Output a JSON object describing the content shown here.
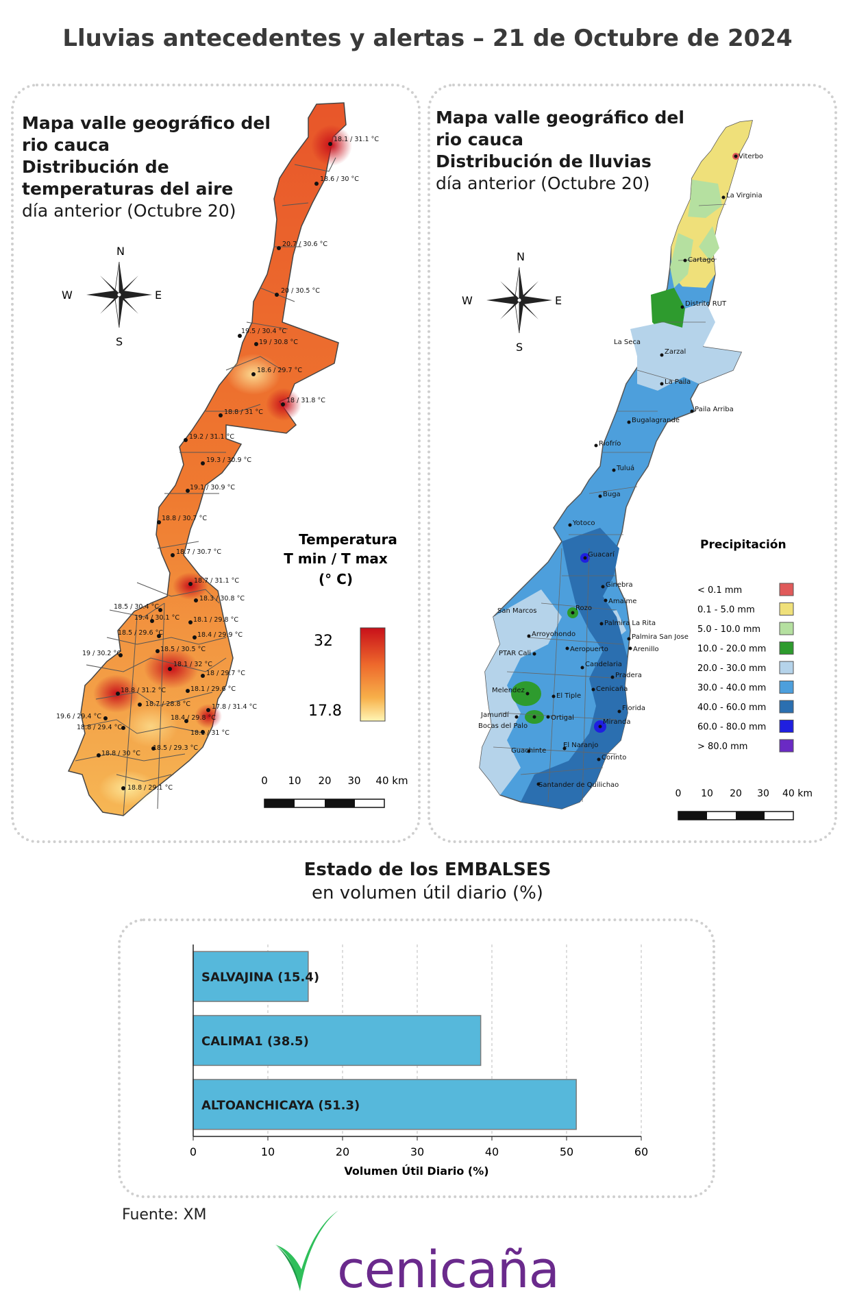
{
  "title": "Lluvias antecedentes y alertas – 21 de Octubre de 2024",
  "temperature_map": {
    "title_line1": "Mapa valle geográfico del",
    "title_line2": "rio cauca",
    "title_line3": "Distribución de",
    "title_line4": "temperaturas del aire",
    "title_line5": "día anterior (Octubre 20)",
    "compass": {
      "n": "N",
      "s": "S",
      "e": "E",
      "w": "W"
    },
    "legend": {
      "title1": "Temperatura",
      "title2": "T min / T max",
      "title3": "(° C)",
      "max": "32",
      "min": "17.8"
    },
    "scale": {
      "labels": [
        "0",
        "10",
        "20",
        "30",
        "40 km"
      ]
    },
    "stations": [
      "18.1 / 31.1 °C",
      "18.6 / 30 °C",
      "20.7 / 30.6 °C",
      "20 / 30.5 °C",
      "19.5 / 30.4 °C",
      "19 / 30.8 °C",
      "18.6 / 29.7 °C",
      "18 / 31.8 °C",
      "18.8 / 31 °C",
      "19.2 / 31.1 °C",
      "19.3 / 30.9 °C",
      "19.1 / 30.9 °C",
      "18.8 / 30.7 °C",
      "18.7 / 30.7 °C",
      "18.7 / 31.1 °C",
      "18.3 / 30.8 °C",
      "18.5 / 30.4 °C",
      "19.4 / 30.1 °C",
      "18.1 / 29.8 °C",
      "18.5 / 29.6 °C",
      "18.4 / 29.9 °C",
      "18.5 / 30.5 °C",
      "19 / 30.2 °C",
      "18.1 / 32 °C",
      "18 / 29.7 °C",
      "18.8 / 31.2 °C",
      "18.1 / 29.6 °C",
      "18.7 / 28.8 °C",
      "17.8 / 31.4 °C",
      "19.6 / 29.4 °C",
      "18.4 / 29.8 °C",
      "18.8 / 29.4 °C",
      "18.1 / 31 °C",
      "18.8 / 30 °C",
      "18.5 / 29.3 °C",
      "18.8 / 29.1 °C"
    ]
  },
  "rain_map": {
    "title_line1": "Mapa valle geográfico del",
    "title_line2": "rio cauca",
    "title_line3": "Distribución de lluvias",
    "title_line4": "día anterior (Octubre 20)",
    "compass": {
      "n": "N",
      "s": "S",
      "e": "E",
      "w": "W"
    },
    "legend_title": "Precipitación",
    "legend": [
      {
        "label": "< 0.1 mm",
        "color": "#e05a5a"
      },
      {
        "label": "0.1 - 5.0 mm",
        "color": "#efe07a"
      },
      {
        "label": "5.0 - 10.0 mm",
        "color": "#b5e0a0"
      },
      {
        "label": "10.0 - 20.0 mm",
        "color": "#2e9b2e"
      },
      {
        "label": "20.0 - 30.0 mm",
        "color": "#b5d3ea"
      },
      {
        "label": "30.0 - 40.0 mm",
        "color": "#4d9fdc"
      },
      {
        "label": "40.0 - 60.0 mm",
        "color": "#2b6fb0"
      },
      {
        "label": "60.0 - 80.0 mm",
        "color": "#1f1fe0"
      },
      {
        "label": "> 80.0 mm",
        "color": "#6a2ac4"
      }
    ],
    "scale": {
      "labels": [
        "0",
        "10",
        "20",
        "30",
        "40 km"
      ]
    },
    "stations": [
      "Viterbo",
      "La Virginia",
      "Cartago",
      "Distrito RUT",
      "La Seca",
      "Zarzal",
      "La Paila",
      "Paila Arriba",
      "Bugalagrande",
      "Riofrío",
      "Tuluá",
      "Buga",
      "Yotoco",
      "Guacarí",
      "Ginebra",
      "Amaime",
      "San Marcos",
      "Rozo",
      "Palmira La Rita",
      "Arroyohondo",
      "Palmira San Jose",
      "Aeropuerto",
      "Arenillo",
      "PTAR Cali",
      "Candelaria",
      "Pradera",
      "Cenicaña",
      "Melendez",
      "El Tiple",
      "Jamundí",
      "Bocas del Palo",
      "Ortigal",
      "Miranda",
      "Florida",
      "Guachinte",
      "El Naranjo",
      "Corinto",
      "Santander de Quilichao"
    ]
  },
  "reservoirs": {
    "title_bold": "Estado de los EMBALSES",
    "title_normal": "en volumen útil diario (%)",
    "bar_color": "#56b8db"
  },
  "chart_data": {
    "type": "bar",
    "orientation": "horizontal",
    "categories": [
      "SALVAJINA",
      "CALIMA1",
      "ALTOANCHICAYA"
    ],
    "values": [
      15.4,
      38.5,
      51.3
    ],
    "data_labels": [
      "SALVAJINA (15.4)",
      "CALIMA1 (38.5)",
      "ALTOANCHICAYA (51.3)"
    ],
    "xlabel": "Volumen Útil Diario (%)",
    "ylabel": "",
    "xlim": [
      0,
      60
    ],
    "xticks": [
      "0",
      "10",
      "20",
      "30",
      "40",
      "50",
      "60"
    ],
    "grid": "vertical dashed"
  },
  "source": "Fuente: XM",
  "logo": "cenicaña"
}
